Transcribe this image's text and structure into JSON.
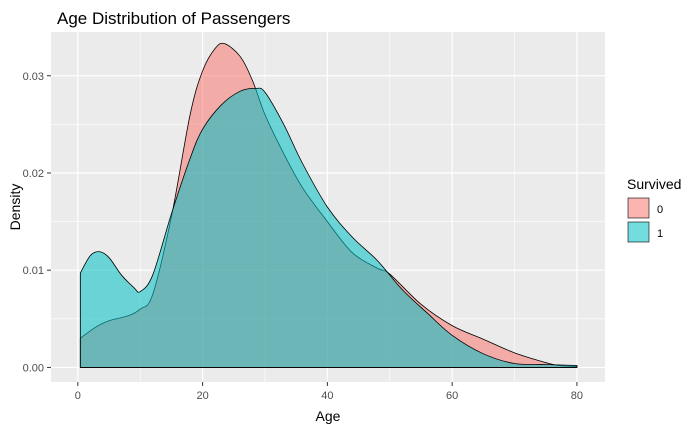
{
  "chart_data": {
    "type": "area",
    "title": "Age Distribution of Passengers",
    "xlabel": "Age",
    "ylabel": "Density",
    "xlim": [
      -4.3,
      84.5
    ],
    "ylim": [
      -0.0015,
      0.0345
    ],
    "xticks": [
      0,
      20,
      40,
      60,
      80
    ],
    "xtick_labels": [
      "0",
      "20",
      "40",
      "60",
      "80"
    ],
    "yticks": [
      0.0,
      0.01,
      0.02,
      0.03
    ],
    "ytick_labels": [
      "0.00",
      "0.01",
      "0.02",
      "0.03"
    ],
    "grid": true,
    "legend": {
      "title": "Survived",
      "placement": "right",
      "entries": [
        "0",
        "1"
      ]
    },
    "colors": {
      "panel": "#ebebeb",
      "grid": "#ffffff",
      "series_0": "#f8766d",
      "series_1": "#00bfc4"
    },
    "series": [
      {
        "name": "0",
        "x": [
          0.4,
          3,
          5,
          8,
          10,
          12,
          15,
          18,
          20,
          22,
          23.5,
          26,
          28,
          30,
          33,
          36,
          40,
          44,
          48,
          50,
          55,
          60,
          65,
          70,
          75,
          77,
          80
        ],
        "y": [
          0.003,
          0.0042,
          0.0048,
          0.0053,
          0.006,
          0.0075,
          0.0155,
          0.026,
          0.0305,
          0.0328,
          0.0333,
          0.032,
          0.0295,
          0.026,
          0.022,
          0.0185,
          0.015,
          0.0118,
          0.0102,
          0.0096,
          0.0065,
          0.0043,
          0.0029,
          0.0015,
          0.0005,
          0.0002,
          0.0001
        ]
      },
      {
        "name": "1",
        "x": [
          0.4,
          2,
          3.5,
          5,
          7,
          9,
          10,
          12,
          15,
          18,
          20,
          23,
          26,
          28.5,
          30,
          33,
          36,
          40,
          44,
          48,
          52,
          56,
          60,
          65,
          70,
          75,
          80
        ],
        "y": [
          0.0097,
          0.0115,
          0.0119,
          0.0113,
          0.0095,
          0.0082,
          0.0078,
          0.0095,
          0.0158,
          0.0215,
          0.0245,
          0.027,
          0.0284,
          0.0287,
          0.0283,
          0.025,
          0.021,
          0.0165,
          0.0134,
          0.011,
          0.008,
          0.0056,
          0.0033,
          0.0014,
          0.0004,
          0.0003,
          0.0002
        ]
      }
    ]
  }
}
